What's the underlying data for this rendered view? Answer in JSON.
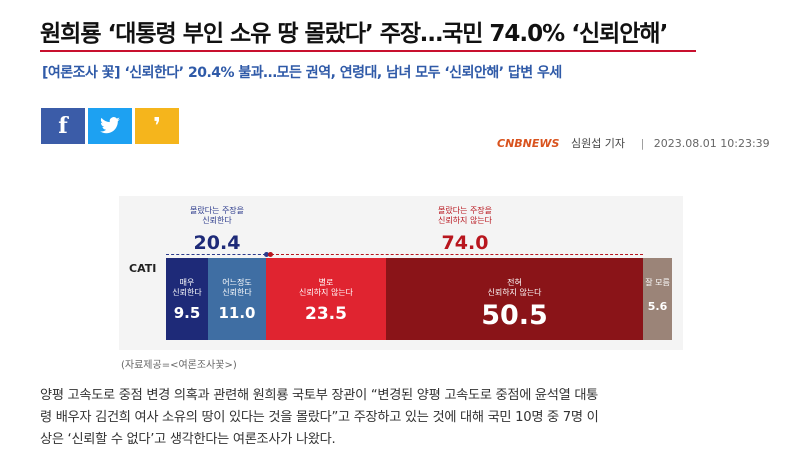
{
  "article": {
    "headline": "원희룡 ‘대통령 부인 소유 땅 몰랐다’ 주장…국민 74.0% ‘신뢰안해’",
    "subheadline": "[여론조사 꽃] ‘신뢰한다’ 20.4% 불과…모든 권역, 연령대, 남녀 모두 ‘신뢰안해’ 답변 우세",
    "share": {
      "facebook_icon": "facebook-icon",
      "twitter_icon": "twitter-icon",
      "kakaostory_icon": "kakaostory-icon"
    },
    "byline": {
      "outlet_logo": "CNBNEWS",
      "reporter": "심원섭 기자",
      "divider": "|",
      "datetime": "2023.08.01 10:23:39"
    },
    "figure_source": "(자료제공=<여론조사꽃>)",
    "body_lines": [
      "양평 고속도로 중점 변경 의혹과 관련해 원희룡 국토부 장관이 “변경된 양평 고속도로 중점에 윤석열 대통",
      "령 배우자 김건희 여사 소유의 땅이 있다는 것을 몰랐다”고 주장하고 있는 것에 대해 국민 10명 중 7명 이",
      "상은 ‘신뢰할 수 없다’고 생각한다는 여론조사가 나왔다."
    ]
  },
  "chart_data": {
    "type": "bar",
    "orientation": "horizontal-stacked",
    "row_label": "CATI",
    "groups": [
      {
        "caption": "몰랐다는 주장을\n신뢰한다",
        "value_label": "20.4",
        "value": 20.4,
        "color": "#2b3a8c"
      },
      {
        "caption": "몰랐다는 주장을\n신뢰하지 않는다",
        "value_label": "74.0",
        "value": 74.0,
        "color": "#b8161e"
      }
    ],
    "segments": [
      {
        "label": "매우\n신뢰한다",
        "value_label": "9.5",
        "value": 9.5,
        "color": "#1e2a78"
      },
      {
        "label": "어느정도\n신뢰한다",
        "value_label": "11.0",
        "value": 11.0,
        "color": "#3f6ea3"
      },
      {
        "label": "별로\n신뢰하지 않는다",
        "value_label": "23.5",
        "value": 23.5,
        "color": "#e02430"
      },
      {
        "label": "전혀\n신뢰하지 않는다",
        "value_label": "50.5",
        "value": 50.5,
        "color": "#8a1418"
      },
      {
        "label": "잘 모름",
        "value_label": "5.6",
        "value": 5.6,
        "color": "#9b8478"
      }
    ]
  }
}
